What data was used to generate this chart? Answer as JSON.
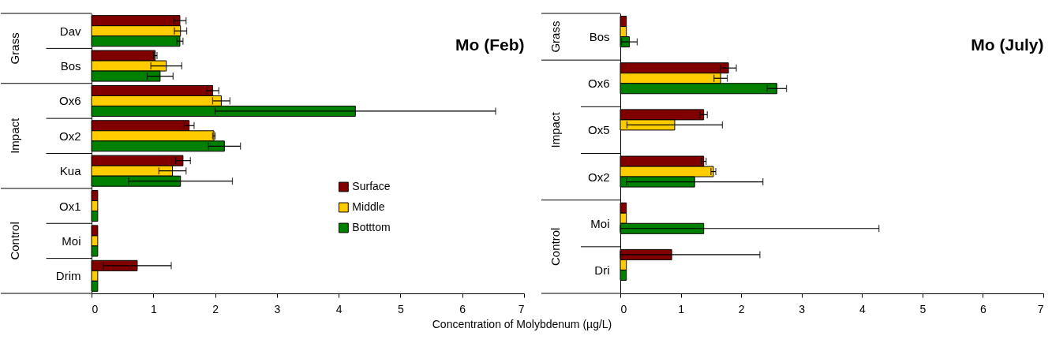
{
  "chart_data": [
    {
      "type": "bar",
      "orientation": "horizontal",
      "title": "Mo (Feb)",
      "xlabel": "Concentration of Molybdenum (µg/L)",
      "annotations": [
        "Grass",
        "Impact",
        "Control"
      ],
      "categories": [
        "Dav",
        "Bos",
        "Ox6",
        "Ox2",
        "Kua",
        "Ox1",
        "Moi",
        "Drim"
      ],
      "series": [
        {
          "name": "Surface",
          "color": "#800000",
          "values": [
            1.43,
            1.03,
            1.96,
            1.58,
            1.48,
            0.1,
            0.1,
            0.74
          ],
          "errors": [
            0.1,
            0.03,
            0.1,
            0.08,
            0.12,
            null,
            null,
            0.55
          ]
        },
        {
          "name": "Middle",
          "color": "#ffcc00",
          "values": [
            1.44,
            1.21,
            2.1,
            1.98,
            1.31,
            0.1,
            0.1,
            0.1
          ],
          "errors": [
            0.1,
            0.25,
            0.14,
            0.02,
            0.22,
            null,
            null,
            null
          ]
        },
        {
          "name": "Botttom",
          "color": "#008000",
          "values": [
            1.43,
            1.11,
            4.27,
            2.15,
            1.44,
            0.1,
            0.1,
            0.1
          ],
          "errors": [
            0.05,
            0.21,
            2.27,
            0.26,
            0.84,
            null,
            null,
            null
          ]
        }
      ],
      "xlim": [
        0,
        7
      ],
      "xticks": [
        0,
        1,
        2,
        3,
        4,
        5,
        6,
        7
      ],
      "legend": "right",
      "grid": false
    },
    {
      "type": "bar",
      "orientation": "horizontal",
      "title": "Mo (July)",
      "annotations": [
        "Grass",
        "Impact",
        "Control"
      ],
      "categories": [
        "Bos",
        "Ox6",
        "Ox5",
        "Ox2",
        "Moi",
        "Dri"
      ],
      "series": [
        {
          "name": "Surface",
          "color": "#800000",
          "values": [
            0.1,
            1.79,
            1.38,
            1.38,
            0.1,
            0.85
          ],
          "errors": [
            null,
            0.13,
            0.06,
            0.04,
            null,
            [
              0,
              2.31
            ]
          ]
        },
        {
          "name": "Middle",
          "color": "#ffcc00",
          "values": [
            0.1,
            1.66,
            0.9,
            1.54,
            0.1,
            0.1
          ],
          "errors": [
            null,
            0.11,
            0.79,
            0.04,
            null,
            null
          ]
        },
        {
          "name": "Botttom",
          "color": "#008000",
          "values": [
            0.15,
            2.59,
            null,
            1.23,
            1.38,
            0.1
          ],
          "errors": [
            0.13,
            0.16,
            null,
            1.13,
            [
              0,
              4.28
            ],
            null
          ]
        }
      ],
      "xlim": [
        0,
        7
      ],
      "xticks": [
        0,
        1,
        2,
        3,
        4,
        5,
        6,
        7
      ],
      "legend": false,
      "grid": false
    }
  ]
}
